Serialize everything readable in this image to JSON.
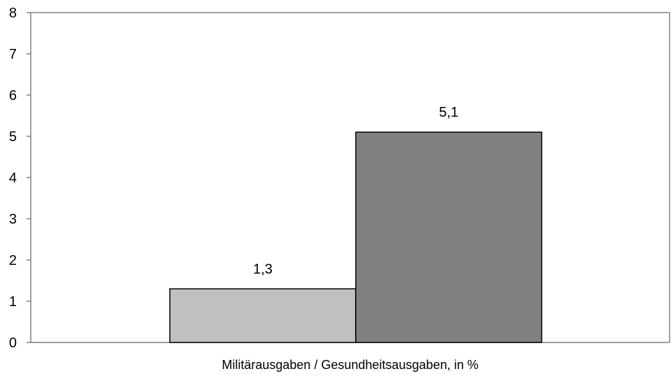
{
  "chart_data": {
    "type": "bar",
    "categories": [
      "Militärausgaben / Gesundheitsausgaben, in %"
    ],
    "series": [
      {
        "values": [
          1.3
        ],
        "color": "#c0c0c0"
      },
      {
        "values": [
          5.1
        ],
        "color": "#808080"
      }
    ],
    "data_labels": [
      "1,3",
      "5,1"
    ],
    "title": "",
    "xlabel": "",
    "ylabel": "",
    "ylim": [
      0,
      8
    ],
    "yticks": [
      "0",
      "1",
      "2",
      "3",
      "4",
      "5",
      "6",
      "7",
      "8"
    ],
    "grid": false,
    "legend": "none",
    "colors": {
      "axis": "#808080",
      "bar_border": "#000000"
    }
  }
}
